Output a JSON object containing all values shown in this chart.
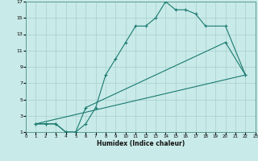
{
  "xlabel": "Humidex (Indice chaleur)",
  "background_color": "#c8eae8",
  "grid_color": "#a8d0ce",
  "line_color": "#1a7a70",
  "xlim": [
    0,
    23
  ],
  "ylim": [
    1,
    17
  ],
  "xticks": [
    0,
    1,
    2,
    3,
    4,
    5,
    6,
    7,
    8,
    9,
    10,
    11,
    12,
    13,
    14,
    15,
    16,
    17,
    18,
    19,
    20,
    21,
    22,
    23
  ],
  "yticks": [
    1,
    3,
    5,
    7,
    9,
    11,
    13,
    15,
    17
  ],
  "curve1_x": [
    1,
    2,
    3,
    4,
    5,
    6,
    7,
    8,
    9,
    10,
    11,
    12,
    13,
    14,
    15,
    16,
    17,
    18,
    20,
    22
  ],
  "curve1_y": [
    2,
    2,
    2,
    1,
    1,
    2,
    4,
    8,
    10,
    12,
    14,
    14,
    15,
    17,
    16,
    16,
    15.5,
    14,
    14,
    8
  ],
  "curve2_x": [
    1,
    2,
    3,
    4,
    5,
    6,
    20,
    22
  ],
  "curve2_y": [
    2,
    2,
    2,
    1,
    1,
    4,
    12,
    8
  ],
  "curve3_x": [
    1,
    22
  ],
  "curve3_y": [
    2,
    8
  ]
}
